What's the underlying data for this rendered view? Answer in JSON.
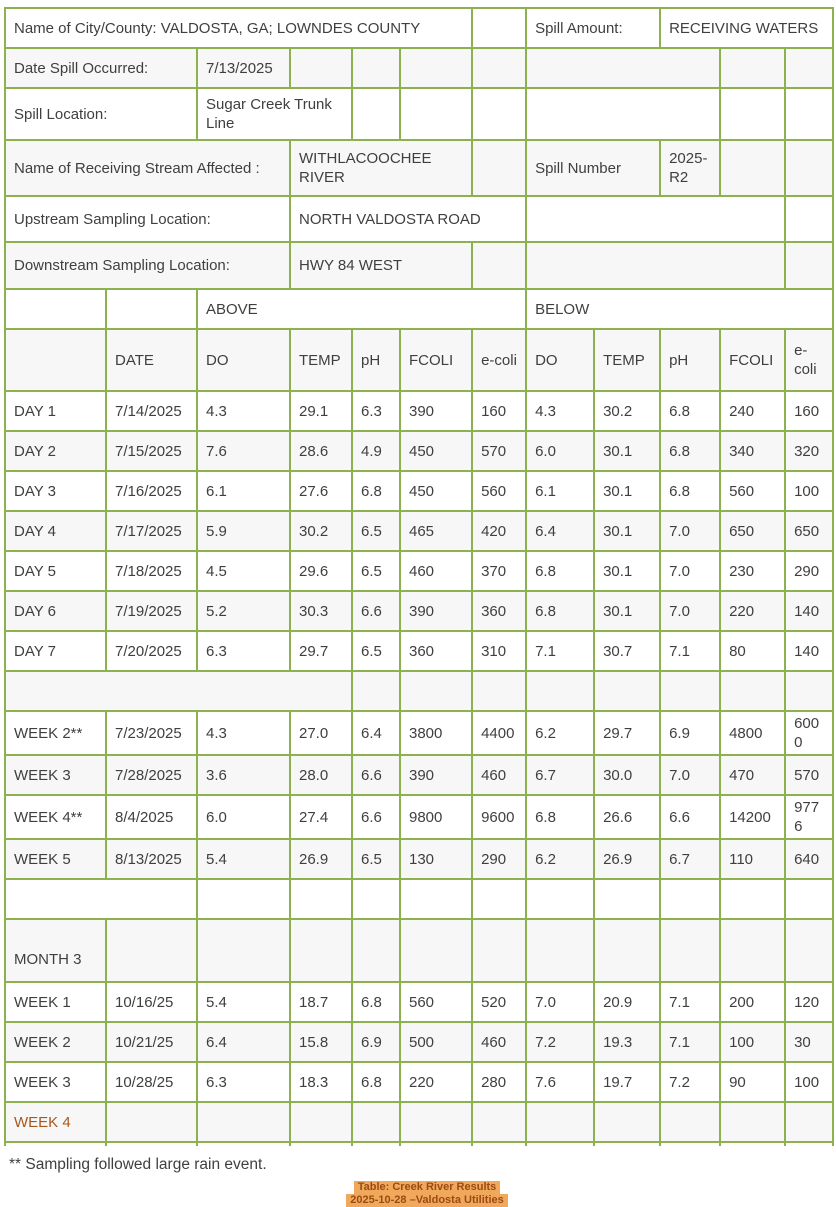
{
  "report": {
    "city_county": "Name of City/County: VALDOSTA, GA; LOWNDES COUNTY",
    "spill_amount": {
      "label": "Spill Amount:",
      "value": "RECEIVING WATERS"
    },
    "date_spill": {
      "label": "Date Spill Occurred:",
      "value": "7/13/2025"
    },
    "spill_location": {
      "label": "Spill Location:",
      "value": "Sugar Creek Trunk Line"
    },
    "receiving_stream": {
      "label": "Name of Receiving Stream Affected :",
      "value": "WITHLACOOCHEE RIVER"
    },
    "spill_number": {
      "label": "Spill Number",
      "value": "2025-R2"
    },
    "upstream": {
      "label": "Upstream Sampling Location:",
      "value": "NORTH VALDOSTA ROAD"
    },
    "downstream": {
      "label": "Downstream Sampling Location:",
      "value": "HWY 84 WEST"
    }
  },
  "table": {
    "groups": {
      "above": "ABOVE",
      "below": "BELOW"
    },
    "columns": [
      "",
      "DATE",
      "DO",
      "TEMP",
      "pH",
      "FCOLI",
      "e-coli",
      "DO",
      "TEMP",
      "pH",
      "FCOLI",
      "e-coli"
    ],
    "rows": [
      {
        "type": "data",
        "label": "DAY 1",
        "date": "7/14/2025",
        "values": [
          "4.3",
          "29.1",
          "6.3",
          "390",
          "160",
          "4.3",
          "30.2",
          "6.8",
          "240",
          "160"
        ]
      },
      {
        "type": "data",
        "label": "DAY 2",
        "date": "7/15/2025",
        "values": [
          "7.6",
          "28.6",
          "4.9",
          "450",
          "570",
          "6.0",
          "30.1",
          "6.8",
          "340",
          "320"
        ]
      },
      {
        "type": "data",
        "label": "DAY 3",
        "date": "7/16/2025",
        "values": [
          "6.1",
          "27.6",
          "6.8",
          "450",
          "560",
          "6.1",
          "30.1",
          "6.8",
          "560",
          "100"
        ]
      },
      {
        "type": "data",
        "label": "DAY 4",
        "date": "7/17/2025",
        "values": [
          "5.9",
          "30.2",
          "6.5",
          "465",
          "420",
          "6.4",
          "30.1",
          "7.0",
          "650",
          "650"
        ]
      },
      {
        "type": "data",
        "label": "DAY 5",
        "date": "7/18/2025",
        "values": [
          "4.5",
          "29.6",
          "6.5",
          "460",
          "370",
          "6.8",
          "30.1",
          "7.0",
          "230",
          "290"
        ]
      },
      {
        "type": "data",
        "label": "DAY 6",
        "date": "7/19/2025",
        "values": [
          "5.2",
          "30.3",
          "6.6",
          "390",
          "360",
          "6.8",
          "30.1",
          "7.0",
          "220",
          "140"
        ]
      },
      {
        "type": "data",
        "label": "DAY 7",
        "date": "7/20/2025",
        "values": [
          "6.3",
          "29.7",
          "6.5",
          "360",
          "310",
          "7.1",
          "30.7",
          "7.1",
          "80",
          "140"
        ]
      },
      {
        "type": "spacer4"
      },
      {
        "type": "data",
        "label": "WEEK 2**",
        "date": "7/23/2025",
        "values": [
          "4.3",
          "27.0",
          "6.4",
          "3800",
          "4400",
          "6.2",
          "29.7",
          "6.9",
          "4800",
          "6000"
        ]
      },
      {
        "type": "data",
        "label": "WEEK 3",
        "date": "7/28/2025",
        "values": [
          "3.6",
          "28.0",
          "6.6",
          "390",
          "460",
          "6.7",
          "30.0",
          "7.0",
          "470",
          "570"
        ]
      },
      {
        "type": "data",
        "label": "WEEK 4**",
        "date": "8/4/2025",
        "values": [
          "6.0",
          "27.4",
          "6.6",
          "9800",
          "9600",
          "6.8",
          "26.6",
          "6.6",
          "14200",
          "9776"
        ]
      },
      {
        "type": "data",
        "label": "WEEK 5",
        "date": "8/13/2025",
        "values": [
          "5.4",
          "26.9",
          "6.5",
          "130",
          "290",
          "6.2",
          "26.9",
          "6.7",
          "110",
          "640"
        ]
      },
      {
        "type": "spacer2"
      },
      {
        "type": "month",
        "label": "MONTH 3"
      },
      {
        "type": "data",
        "label": "WEEK 1",
        "date": "10/16/25",
        "values": [
          "5.4",
          "18.7",
          "6.8",
          "560",
          "520",
          "7.0",
          "20.9",
          "7.1",
          "200",
          "120"
        ]
      },
      {
        "type": "data",
        "label": "WEEK 2",
        "date": "10/21/25",
        "values": [
          "6.4",
          "15.8",
          "6.9",
          "500",
          "460",
          "7.2",
          "19.3",
          "7.1",
          "100",
          "30"
        ]
      },
      {
        "type": "data",
        "label": "WEEK 3",
        "date": "10/28/25",
        "values": [
          "6.3",
          "18.3",
          "6.8",
          "220",
          "280",
          "7.6",
          "19.7",
          "7.2",
          "90",
          "100"
        ]
      },
      {
        "type": "data",
        "label": "WEEK 4",
        "date": "",
        "accent": true,
        "values": [
          "",
          "",
          "",
          "",
          "",
          "",
          "",
          "",
          "",
          ""
        ]
      },
      {
        "type": "partial"
      }
    ]
  },
  "footnote": "** Sampling followed large rain event.",
  "badge": {
    "line1": "Table: Creek River Results",
    "line2": "2025-10-28 –Valdosta Utilities"
  },
  "colors": {
    "border_green": "#8cb14e",
    "stripe_gray": "#f7f7f7",
    "text": "#3f3f3f",
    "accent_orange": "#a8571d",
    "badge_bg": "#f0a95b",
    "badge_text": "#9c4a16"
  }
}
